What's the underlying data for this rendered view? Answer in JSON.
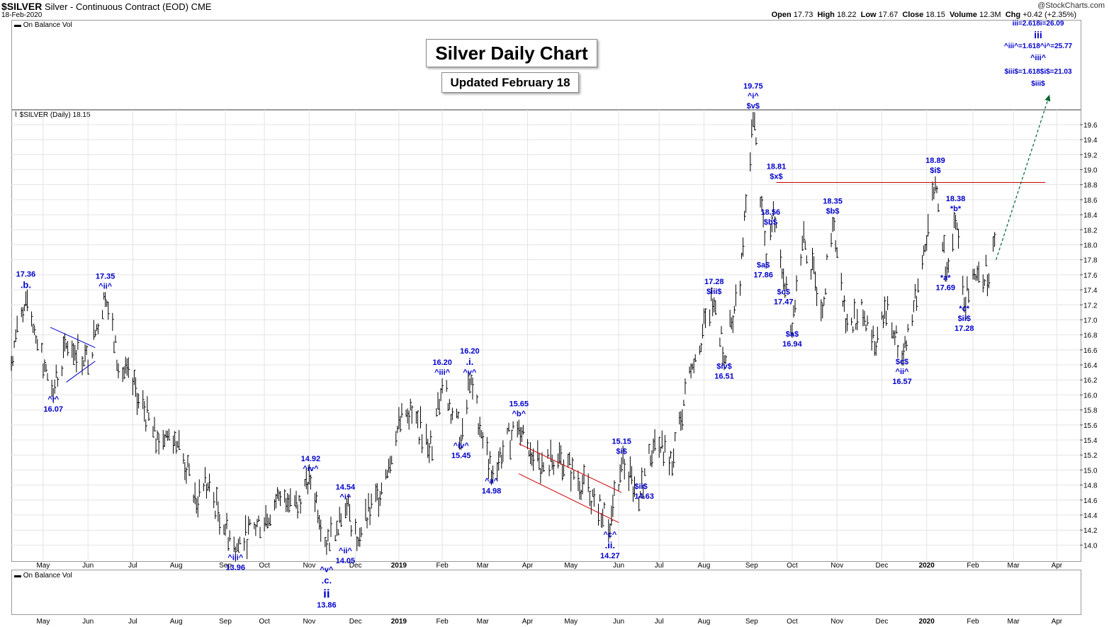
{
  "header": {
    "symbol": "$SILVER",
    "description": "Silver - Continuous Contract (EOD)",
    "exchange": "CME",
    "date": "18-Feb-2020",
    "brand": "@StockCharts.com",
    "open_label": "Open",
    "open": "17.73",
    "high_label": "High",
    "high": "18.22",
    "low_label": "Low",
    "low": "17.67",
    "close_label": "Close",
    "close": "18.15",
    "volume_label": "Volume",
    "volume": "12.3M",
    "chg_label": "Chg",
    "chg": "+0.42 (+2.35%)"
  },
  "top_panel_label": "On Balance Vol",
  "main_panel_label": "$SILVER (Daily) 18.15",
  "bottom_panel_label": "On Balance Vol",
  "title": "Silver Daily Chart",
  "subtitle": "Updated February 18",
  "colors": {
    "bars": "#000000",
    "annotation": "#0000cc",
    "resistance": "#cc0000",
    "channel": "#cc0000",
    "triangle": "#0000cc",
    "projection": "#006633",
    "grid": "#e4e4e4"
  },
  "chart_data": {
    "type": "ohlc",
    "ylim": [
      13.9,
      19.75
    ],
    "yticks": [
      "14.0",
      "14.2",
      "14.4",
      "14.6",
      "14.8",
      "15.0",
      "15.2",
      "15.4",
      "15.6",
      "15.8",
      "16.0",
      "16.2",
      "16.4",
      "16.6",
      "16.8",
      "17.0",
      "17.2",
      "17.4",
      "17.6",
      "17.8",
      "18.0",
      "18.2",
      "18.4",
      "18.6",
      "18.8",
      "19.0",
      "19.2",
      "19.4",
      "19.6"
    ],
    "x_range": [
      "2018-04-09",
      "2020-04-17"
    ],
    "xticks": [
      {
        "label": "May",
        "date": "2018-05-01"
      },
      {
        "label": "Jun",
        "date": "2018-06-01"
      },
      {
        "label": "Jul",
        "date": "2018-07-02"
      },
      {
        "label": "Aug",
        "date": "2018-08-01"
      },
      {
        "label": "Sep",
        "date": "2018-09-04"
      },
      {
        "label": "Oct",
        "date": "2018-10-01"
      },
      {
        "label": "Nov",
        "date": "2018-11-01"
      },
      {
        "label": "Dec",
        "date": "2018-12-03"
      },
      {
        "label": "2019",
        "date": "2019-01-02",
        "bold": true
      },
      {
        "label": "Feb",
        "date": "2019-02-01"
      },
      {
        "label": "Mar",
        "date": "2019-03-01"
      },
      {
        "label": "Apr",
        "date": "2019-04-01"
      },
      {
        "label": "May",
        "date": "2019-05-01"
      },
      {
        "label": "Jun",
        "date": "2019-06-03"
      },
      {
        "label": "Jul",
        "date": "2019-07-01"
      },
      {
        "label": "Aug",
        "date": "2019-08-01"
      },
      {
        "label": "Sep",
        "date": "2019-09-03"
      },
      {
        "label": "Oct",
        "date": "2019-10-01"
      },
      {
        "label": "Nov",
        "date": "2019-11-01"
      },
      {
        "label": "Dec",
        "date": "2019-12-02"
      },
      {
        "label": "2020",
        "date": "2020-01-02",
        "bold": true
      },
      {
        "label": "Feb",
        "date": "2020-02-03"
      },
      {
        "label": "Mar",
        "date": "2020-03-02"
      },
      {
        "label": "Apr",
        "date": "2020-04-01"
      }
    ],
    "price_path": [
      {
        "d": "2018-04-09",
        "v": 16.5
      },
      {
        "d": "2018-04-19",
        "v": 17.36
      },
      {
        "d": "2018-05-01",
        "v": 16.4
      },
      {
        "d": "2018-05-08",
        "v": 16.07
      },
      {
        "d": "2018-05-18",
        "v": 16.7
      },
      {
        "d": "2018-06-01",
        "v": 16.45
      },
      {
        "d": "2018-06-13",
        "v": 17.35
      },
      {
        "d": "2018-06-22",
        "v": 16.4
      },
      {
        "d": "2018-07-06",
        "v": 16.0
      },
      {
        "d": "2018-07-18",
        "v": 15.4
      },
      {
        "d": "2018-07-31",
        "v": 15.5
      },
      {
        "d": "2018-08-15",
        "v": 14.6
      },
      {
        "d": "2018-08-22",
        "v": 14.8
      },
      {
        "d": "2018-09-11",
        "v": 13.96
      },
      {
        "d": "2018-10-03",
        "v": 14.4
      },
      {
        "d": "2018-10-12",
        "v": 14.7
      },
      {
        "d": "2018-10-26",
        "v": 14.6
      },
      {
        "d": "2018-11-02",
        "v": 14.92
      },
      {
        "d": "2018-11-13",
        "v": 14.05
      },
      {
        "d": "2018-11-20",
        "v": 14.3
      },
      {
        "d": "2018-11-26",
        "v": 14.54
      },
      {
        "d": "2018-12-04",
        "v": 14.1
      },
      {
        "d": "2018-12-20",
        "v": 14.7
      },
      {
        "d": "2018-12-31",
        "v": 15.5
      },
      {
        "d": "2019-01-08",
        "v": 15.8
      },
      {
        "d": "2019-01-25",
        "v": 15.3
      },
      {
        "d": "2019-02-01",
        "v": 16.2
      },
      {
        "d": "2019-02-14",
        "v": 15.45
      },
      {
        "d": "2019-02-20",
        "v": 16.2
      },
      {
        "d": "2019-03-07",
        "v": 14.98
      },
      {
        "d": "2019-03-26",
        "v": 15.65
      },
      {
        "d": "2019-04-10",
        "v": 15.0
      },
      {
        "d": "2019-04-22",
        "v": 15.2
      },
      {
        "d": "2019-05-14",
        "v": 14.7
      },
      {
        "d": "2019-05-28",
        "v": 14.27
      },
      {
        "d": "2019-06-05",
        "v": 15.15
      },
      {
        "d": "2019-06-17",
        "v": 14.63
      },
      {
        "d": "2019-06-27",
        "v": 15.4
      },
      {
        "d": "2019-07-10",
        "v": 15.1
      },
      {
        "d": "2019-07-23",
        "v": 16.4
      },
      {
        "d": "2019-08-08",
        "v": 17.28
      },
      {
        "d": "2019-08-15",
        "v": 16.51
      },
      {
        "d": "2019-08-26",
        "v": 17.5
      },
      {
        "d": "2019-09-04",
        "v": 19.75
      },
      {
        "d": "2019-09-13",
        "v": 17.86
      },
      {
        "d": "2019-09-18",
        "v": 18.56
      },
      {
        "d": "2019-09-26",
        "v": 17.47
      },
      {
        "d": "2019-10-01",
        "v": 16.94
      },
      {
        "d": "2019-10-08",
        "v": 18.1
      },
      {
        "d": "2019-10-22",
        "v": 17.2
      },
      {
        "d": "2019-10-29",
        "v": 18.35
      },
      {
        "d": "2019-11-07",
        "v": 17.0
      },
      {
        "d": "2019-11-20",
        "v": 17.1
      },
      {
        "d": "2019-11-27",
        "v": 16.7
      },
      {
        "d": "2019-12-05",
        "v": 17.1
      },
      {
        "d": "2019-12-16",
        "v": 16.57
      },
      {
        "d": "2019-12-26",
        "v": 17.3
      },
      {
        "d": "2020-01-08",
        "v": 18.89
      },
      {
        "d": "2020-01-15",
        "v": 17.69
      },
      {
        "d": "2020-01-22",
        "v": 18.38
      },
      {
        "d": "2020-01-28",
        "v": 17.28
      },
      {
        "d": "2020-02-06",
        "v": 17.7
      },
      {
        "d": "2020-02-14",
        "v": 17.6
      },
      {
        "d": "2020-02-18",
        "v": 18.15
      }
    ],
    "lines": [
      {
        "name": "resistance",
        "color": "#cc0000",
        "from": {
          "d": "2019-09-20",
          "v": 18.83
        },
        "to": {
          "d": "2020-03-24",
          "v": 18.83
        }
      },
      {
        "name": "channel-upper",
        "color": "#cc0000",
        "from": {
          "d": "2019-03-26",
          "v": 15.35
        },
        "to": {
          "d": "2019-06-05",
          "v": 14.7
        }
      },
      {
        "name": "channel-lower",
        "color": "#cc0000",
        "from": {
          "d": "2019-03-26",
          "v": 14.95
        },
        "to": {
          "d": "2019-06-03",
          "v": 14.3
        }
      },
      {
        "name": "triangle-upper",
        "color": "#0000cc",
        "from": {
          "d": "2018-05-06",
          "v": 16.9
        },
        "to": {
          "d": "2018-06-06",
          "v": 16.63
        }
      },
      {
        "name": "triangle-lower",
        "color": "#0000cc",
        "from": {
          "d": "2018-05-17",
          "v": 16.17
        },
        "to": {
          "d": "2018-06-06",
          "v": 16.45
        }
      }
    ],
    "projection": {
      "from": {
        "d": "2020-02-19",
        "v": 17.8
      },
      "to": {
        "d": "2020-03-27",
        "v": 20.0
      }
    },
    "annotations": [
      {
        "lines": [
          "17.36",
          ".b."
        ],
        "d": "2018-04-19",
        "v": 17.36,
        "pos": "above",
        "size": [
          11,
          13
        ]
      },
      {
        "lines": [
          "^i^",
          "16.07"
        ],
        "d": "2018-05-08",
        "v": 16.07,
        "pos": "below"
      },
      {
        "lines": [
          "17.35",
          "^ii^"
        ],
        "d": "2018-06-13",
        "v": 17.35,
        "pos": "above"
      },
      {
        "lines": [
          "^iii^",
          "13.96"
        ],
        "d": "2018-09-11",
        "v": 13.96,
        "pos": "below"
      },
      {
        "lines": [
          "14.92",
          "^iv^"
        ],
        "d": "2018-11-02",
        "v": 14.92,
        "pos": "above"
      },
      {
        "lines": [
          "14.54",
          "^i^"
        ],
        "d": "2018-11-26",
        "v": 14.54,
        "pos": "above"
      },
      {
        "lines": [
          "^ii^",
          "14.05"
        ],
        "d": "2018-11-26",
        "v": 14.05,
        "pos": "below"
      },
      {
        "lines": [
          "^v^",
          ".c.",
          "ii",
          "13.86"
        ],
        "d": "2018-11-13",
        "v": 13.8,
        "pos": "below",
        "size": [
          11,
          13,
          17,
          11
        ]
      },
      {
        "lines": [
          "16.20",
          "^iii^"
        ],
        "d": "2019-02-01",
        "v": 16.2,
        "pos": "above"
      },
      {
        "lines": [
          "16.20",
          ".i.",
          "^v^"
        ],
        "d": "2019-02-20",
        "v": 16.2,
        "pos": "above",
        "size": [
          11,
          13,
          11
        ]
      },
      {
        "lines": [
          "^iv^",
          "15.45"
        ],
        "d": "2019-02-14",
        "v": 15.45,
        "pos": "below"
      },
      {
        "lines": [
          "15.65",
          "^b^"
        ],
        "d": "2019-03-26",
        "v": 15.65,
        "pos": "above"
      },
      {
        "lines": [
          "^a^",
          "14.98"
        ],
        "d": "2019-03-07",
        "v": 14.98,
        "pos": "below"
      },
      {
        "lines": [
          "^c^",
          ".ii.",
          "14.27"
        ],
        "d": "2019-05-28",
        "v": 14.27,
        "pos": "below",
        "size": [
          11,
          13,
          11
        ]
      },
      {
        "lines": [
          "15.15",
          "$i$"
        ],
        "d": "2019-06-05",
        "v": 15.15,
        "pos": "above"
      },
      {
        "lines": [
          "$ii$",
          "14.63"
        ],
        "d": "2019-06-11",
        "v": 14.72,
        "pos": "right"
      },
      {
        "lines": [
          "17.28",
          "$iii$"
        ],
        "d": "2019-08-08",
        "v": 17.28,
        "pos": "above"
      },
      {
        "lines": [
          "$iv$",
          "16.51"
        ],
        "d": "2019-08-15",
        "v": 16.51,
        "pos": "below"
      },
      {
        "lines": [
          "19.75",
          "^i^",
          "$v$"
        ],
        "d": "2019-09-04",
        "v": 19.75,
        "pos": "above"
      },
      {
        "lines": [
          "$a$",
          "17.86"
        ],
        "d": "2019-09-11",
        "v": 17.86,
        "pos": "below"
      },
      {
        "lines": [
          "18.81",
          "$x$"
        ],
        "d": "2019-09-20",
        "v": 18.81,
        "pos": "above"
      },
      {
        "lines": [
          "18.56",
          "$b$"
        ],
        "d": "2019-09-16",
        "v": 18.56,
        "pos": "below"
      },
      {
        "lines": [
          "$c$",
          "17.47"
        ],
        "d": "2019-09-25",
        "v": 17.5,
        "pos": "below"
      },
      {
        "lines": [
          "$a$",
          "16.94"
        ],
        "d": "2019-10-01",
        "v": 16.94,
        "pos": "below"
      },
      {
        "lines": [
          "18.35",
          "$b$"
        ],
        "d": "2019-10-29",
        "v": 18.35,
        "pos": "above"
      },
      {
        "lines": [
          "$c$",
          "^ii^",
          "16.57"
        ],
        "d": "2019-12-16",
        "v": 16.57,
        "pos": "below"
      },
      {
        "lines": [
          "18.89",
          "$i$"
        ],
        "d": "2020-01-08",
        "v": 18.89,
        "pos": "above"
      },
      {
        "lines": [
          "18.38",
          "*b*"
        ],
        "d": "2020-01-22",
        "v": 18.38,
        "pos": "above"
      },
      {
        "lines": [
          "*a*",
          "17.69"
        ],
        "d": "2020-01-15",
        "v": 17.69,
        "pos": "below"
      },
      {
        "lines": [
          "*c*",
          "$ii$",
          "17.28"
        ],
        "d": "2020-01-28",
        "v": 17.28,
        "pos": "below"
      }
    ],
    "targets": [
      "iii=2.618i=26.09",
      "iii",
      "^iii^=1.618^i^=25.77",
      "^iii^",
      "$iii$=1.618$i$=21.03",
      "$iii$"
    ]
  }
}
